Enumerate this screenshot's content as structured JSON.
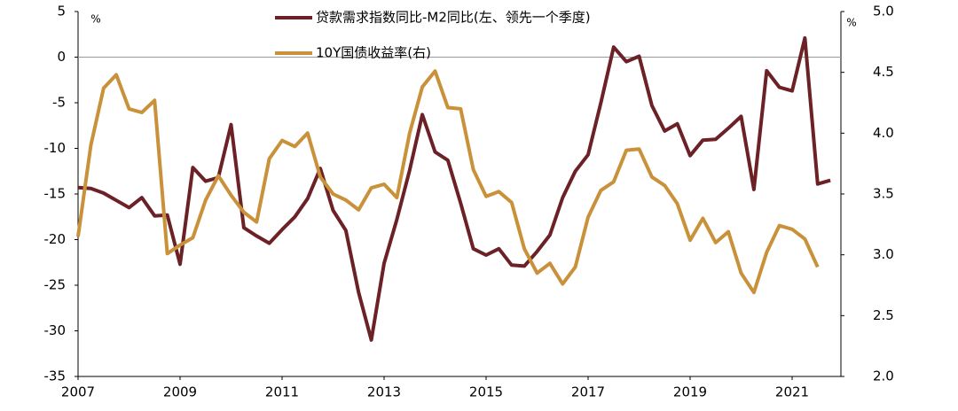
{
  "chart_data": {
    "type": "line",
    "left_unit": "%",
    "right_unit": "%",
    "xlim": [
      2007,
      2022.25
    ],
    "xticks": [
      2007,
      2009,
      2011,
      2013,
      2015,
      2017,
      2019,
      2021
    ],
    "ylim": [
      -35,
      5
    ],
    "yticks": [
      5,
      0,
      -5,
      -10,
      -15,
      -20,
      -25,
      -30,
      -35
    ],
    "y2lim": [
      2.0,
      5.0
    ],
    "y2ticks": [
      {
        "value": 5,
        "label": "5.0"
      },
      {
        "value": 4.5,
        "label": "4.5"
      },
      {
        "value": 4,
        "label": "4.0"
      },
      {
        "value": 3.5,
        "label": "3.5"
      },
      {
        "value": 3,
        "label": "3.0"
      },
      {
        "value": 2.5,
        "label": "2.5"
      },
      {
        "value": 2,
        "label": "2.0"
      }
    ],
    "series": [
      {
        "name": "贷款需求指数同比-M2同比(左、领先一个季度)",
        "color": "#6b2125",
        "axis": "y",
        "x": [
          2007,
          2007.25,
          2007.5,
          2007.75,
          2008,
          2008.25,
          2008.5,
          2008.75,
          2009,
          2009.25,
          2009.5,
          2009.75,
          2010,
          2010.25,
          2010.5,
          2010.75,
          2011,
          2011.25,
          2011.5,
          2011.75,
          2012,
          2012.25,
          2012.5,
          2012.75,
          2013,
          2013.25,
          2013.5,
          2013.75,
          2014,
          2014.25,
          2014.5,
          2014.75,
          2015,
          2015.25,
          2015.5,
          2015.75,
          2016,
          2016.25,
          2016.5,
          2016.75,
          2017,
          2017.25,
          2017.5,
          2017.75,
          2018,
          2018.25,
          2018.5,
          2018.75,
          2019,
          2019.25,
          2019.5,
          2019.75,
          2020,
          2020.25,
          2020.5,
          2020.75,
          2021,
          2021.25,
          2021.5,
          2021.75
        ],
        "values": [
          -14.3,
          -14.4,
          -14.9,
          -15.7,
          -16.5,
          -15.4,
          -17.4,
          -17.3,
          -22.7,
          -12.1,
          -13.6,
          -13.2,
          -7.4,
          -18.7,
          -19.6,
          -20.4,
          -18.9,
          -17.5,
          -15.5,
          -12.2,
          -16.8,
          -19.0,
          -25.8,
          -31.0,
          -22.6,
          -17.8,
          -12.4,
          -6.3,
          -10.4,
          -11.3,
          -16.0,
          -21.0,
          -21.7,
          -21.0,
          -22.8,
          -22.9,
          -21.3,
          -19.5,
          -15.4,
          -12.5,
          -10.7,
          -5.0,
          1.1,
          -0.5,
          0.1,
          -5.3,
          -8.1,
          -7.3,
          -10.8,
          -9.1,
          -9.0,
          -7.8,
          -6.5,
          -14.5,
          -1.5,
          -3.3,
          -3.7,
          2.1,
          -13.9,
          -13.5
        ]
      },
      {
        "name": "10Y国债收益率(右)",
        "color": "#c8913a",
        "axis": "y2",
        "x": [
          2007,
          2007.25,
          2007.5,
          2007.75,
          2008,
          2008.25,
          2008.5,
          2008.75,
          2009,
          2009.25,
          2009.5,
          2009.75,
          2010,
          2010.25,
          2010.5,
          2010.75,
          2011,
          2011.25,
          2011.5,
          2011.75,
          2012,
          2012.25,
          2012.5,
          2012.75,
          2013,
          2013.25,
          2013.5,
          2013.75,
          2014,
          2014.25,
          2014.5,
          2014.75,
          2015,
          2015.25,
          2015.5,
          2015.75,
          2016,
          2016.25,
          2016.5,
          2016.75,
          2017,
          2017.25,
          2017.5,
          2017.75,
          2018,
          2018.25,
          2018.5,
          2018.75,
          2019,
          2019.25,
          2019.5,
          2019.75,
          2020,
          2020.25,
          2020.5,
          2020.75,
          2021,
          2021.25,
          2021.5
        ],
        "values": [
          3.15,
          3.9,
          4.37,
          4.48,
          4.2,
          4.17,
          4.27,
          3.01,
          3.08,
          3.14,
          3.45,
          3.65,
          3.49,
          3.35,
          3.27,
          3.79,
          3.94,
          3.89,
          4.0,
          3.64,
          3.5,
          3.45,
          3.37,
          3.55,
          3.58,
          3.47,
          4.0,
          4.38,
          4.51,
          4.21,
          4.2,
          3.7,
          3.48,
          3.52,
          3.43,
          3.05,
          2.85,
          2.93,
          2.76,
          2.9,
          3.31,
          3.53,
          3.6,
          3.86,
          3.87,
          3.64,
          3.57,
          3.42,
          3.12,
          3.3,
          3.1,
          3.19,
          2.85,
          2.69,
          3.02,
          3.24,
          3.21,
          3.13,
          2.9
        ]
      }
    ]
  }
}
